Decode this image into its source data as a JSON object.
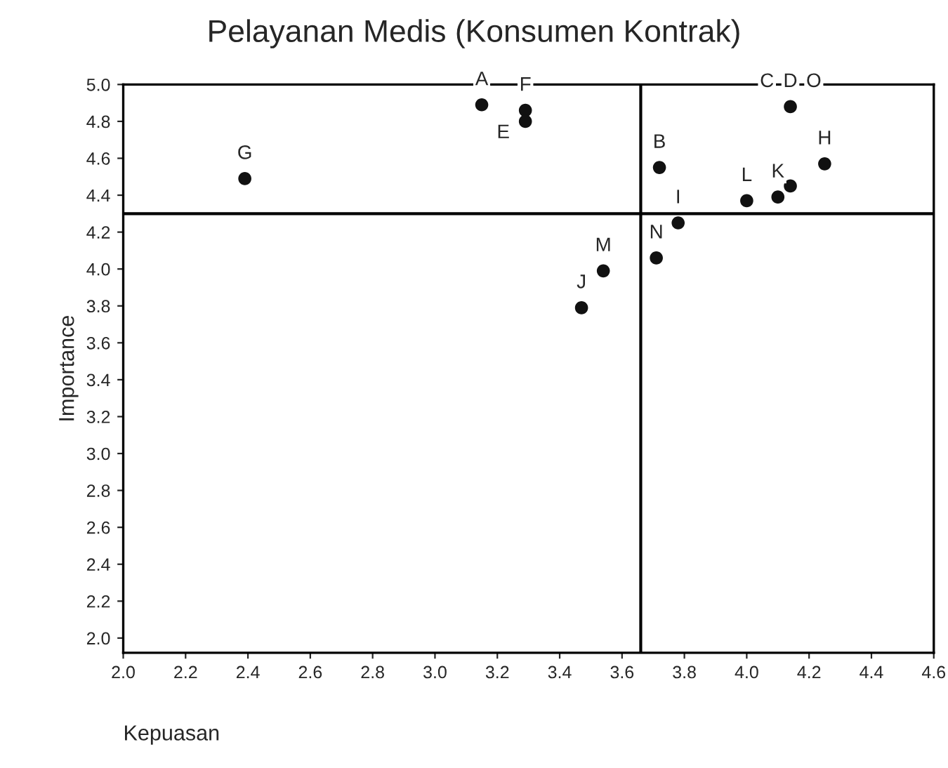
{
  "chart_data": {
    "type": "scatter",
    "title": "Pelayanan Medis (Konsumen Kontrak)",
    "xlabel": "Kepuasan",
    "ylabel": "Importance",
    "x": [
      3.15,
      3.29,
      3.29,
      2.39,
      3.72,
      4.14,
      4.25,
      4.14,
      4.1,
      4.0,
      3.78,
      3.71,
      3.54,
      3.47
    ],
    "series": [
      {
        "color": "#111111",
        "values": [
          4.89,
          4.86,
          4.8,
          4.49,
          4.55,
          4.88,
          4.57,
          4.45,
          4.39,
          4.37,
          4.25,
          4.06,
          3.99,
          3.79
        ]
      }
    ],
    "marker": "circle",
    "xlim": [
      2.0,
      4.6
    ],
    "ylim": [
      1.92,
      5.0
    ],
    "xticks": [
      {
        "value": 2.0,
        "label": "2.0"
      },
      {
        "value": 2.2,
        "label": "2.2"
      },
      {
        "value": 2.4,
        "label": "2.4"
      },
      {
        "value": 2.6,
        "label": "2.6"
      },
      {
        "value": 2.8,
        "label": "2.8"
      },
      {
        "value": 3.0,
        "label": "3.0"
      },
      {
        "value": 3.2,
        "label": "3.2"
      },
      {
        "value": 3.4,
        "label": "3.4"
      },
      {
        "value": 3.6,
        "label": "3.6"
      },
      {
        "value": 3.8,
        "label": "3.8"
      },
      {
        "value": 4.0,
        "label": "4.0"
      },
      {
        "value": 4.2,
        "label": "4.2"
      },
      {
        "value": 4.4,
        "label": "4.4"
      },
      {
        "value": 4.6,
        "label": "4.6"
      }
    ],
    "yticks": [
      {
        "value": 2.0,
        "label": "2.0"
      },
      {
        "value": 2.2,
        "label": "2.2"
      },
      {
        "value": 2.4,
        "label": "2.4"
      },
      {
        "value": 2.6,
        "label": "2.6"
      },
      {
        "value": 2.8,
        "label": "2.8"
      },
      {
        "value": 3.0,
        "label": "3.0"
      },
      {
        "value": 3.2,
        "label": "3.2"
      },
      {
        "value": 3.4,
        "label": "3.4"
      },
      {
        "value": 3.6,
        "label": "3.6"
      },
      {
        "value": 3.8,
        "label": "3.8"
      },
      {
        "value": 4.0,
        "label": "4.0"
      },
      {
        "value": 4.2,
        "label": "4.2"
      },
      {
        "value": 4.4,
        "label": "4.4"
      },
      {
        "value": 4.6,
        "label": "4.6"
      },
      {
        "value": 4.8,
        "label": "4.8"
      },
      {
        "value": 5.0,
        "label": "5.0"
      }
    ],
    "ref_lines": [
      {
        "axis": "y",
        "value": 4.3,
        "color": "#000000"
      },
      {
        "axis": "x",
        "value": 3.66,
        "color": "#000000"
      }
    ],
    "grid": false,
    "legend": false,
    "annotations": [
      {
        "text": "A",
        "x": 3.15,
        "y": 4.89
      },
      {
        "text": "F",
        "x": 3.29,
        "y": 4.86
      },
      {
        "text": "E",
        "x": 3.29,
        "y": 4.8
      },
      {
        "text": "G",
        "x": 2.39,
        "y": 4.49
      },
      {
        "text": "B",
        "x": 3.72,
        "y": 4.55
      },
      {
        "text": "C",
        "x": 4.14,
        "y": 4.88
      },
      {
        "text": "D",
        "x": 4.14,
        "y": 4.88
      },
      {
        "text": "O",
        "x": 4.14,
        "y": 4.88
      },
      {
        "text": "H",
        "x": 4.25,
        "y": 4.57
      },
      {
        "text": "I",
        "x": 3.78,
        "y": 4.25
      },
      {
        "text": "L",
        "x": 4.0,
        "y": 4.37
      },
      {
        "text": "K",
        "x": 4.1,
        "y": 4.39
      },
      {
        "text": "N",
        "x": 3.71,
        "y": 4.06
      },
      {
        "text": "M",
        "x": 3.54,
        "y": 3.99
      },
      {
        "text": "J",
        "x": 3.47,
        "y": 3.79
      }
    ]
  }
}
